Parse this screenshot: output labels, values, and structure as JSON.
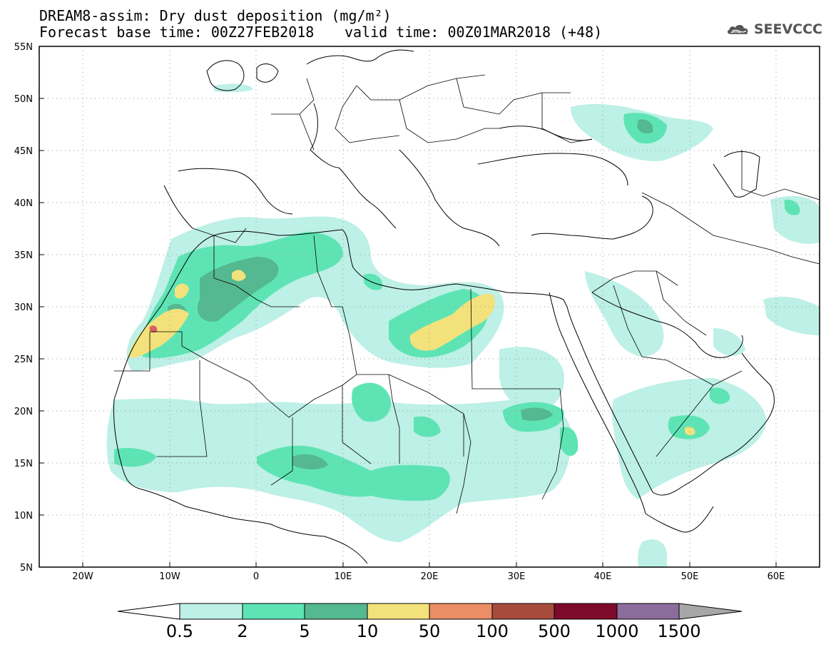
{
  "header": {
    "line1": "DREAM8-assim: Dry dust deposition (mg/m²)",
    "line2_left": "Forecast base time: 00Z27FEB2018",
    "line2_right": "valid time: 00Z01MAR2018 (+48)",
    "logo_text": "SEEVCCC",
    "logo_icon": "cloud-logo-icon"
  },
  "axes": {
    "lat_labels": [
      "55N",
      "50N",
      "45N",
      "40N",
      "35N",
      "30N",
      "25N",
      "20N",
      "15N",
      "10N",
      "5N"
    ],
    "lon_labels": [
      "20W",
      "10W",
      "0",
      "10E",
      "20E",
      "30E",
      "40E",
      "50E",
      "60E"
    ]
  },
  "colorbar": {
    "labels": [
      "0.5",
      "2",
      "5",
      "10",
      "50",
      "100",
      "500",
      "1000",
      "1500"
    ],
    "colors": [
      "#ffffff",
      "#bdf0e6",
      "#5ee4b4",
      "#54b890",
      "#f3e27b",
      "#ea8e65",
      "#a74b3d",
      "#7e0a2b",
      "#8b6d9c",
      "#a7a7a7"
    ]
  },
  "colors": {
    "c1": "#bdf0e6",
    "c2": "#5ee4b4",
    "c3": "#54b890",
    "c4": "#f3e27b",
    "c5": "#ea8e65",
    "c6": "#d96060"
  }
}
